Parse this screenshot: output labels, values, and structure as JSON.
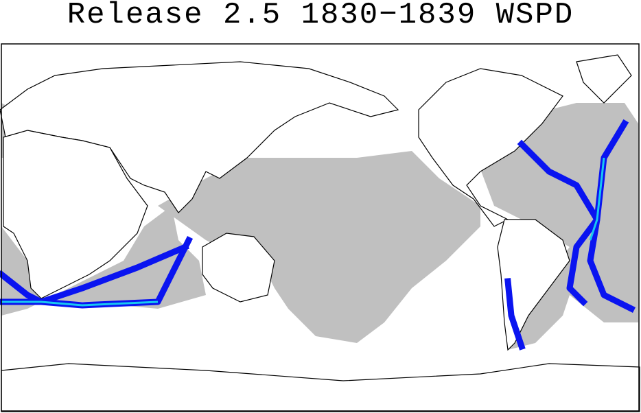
{
  "header": {
    "title": "Release 2.5 1830−1839 WSPD"
  }
}
